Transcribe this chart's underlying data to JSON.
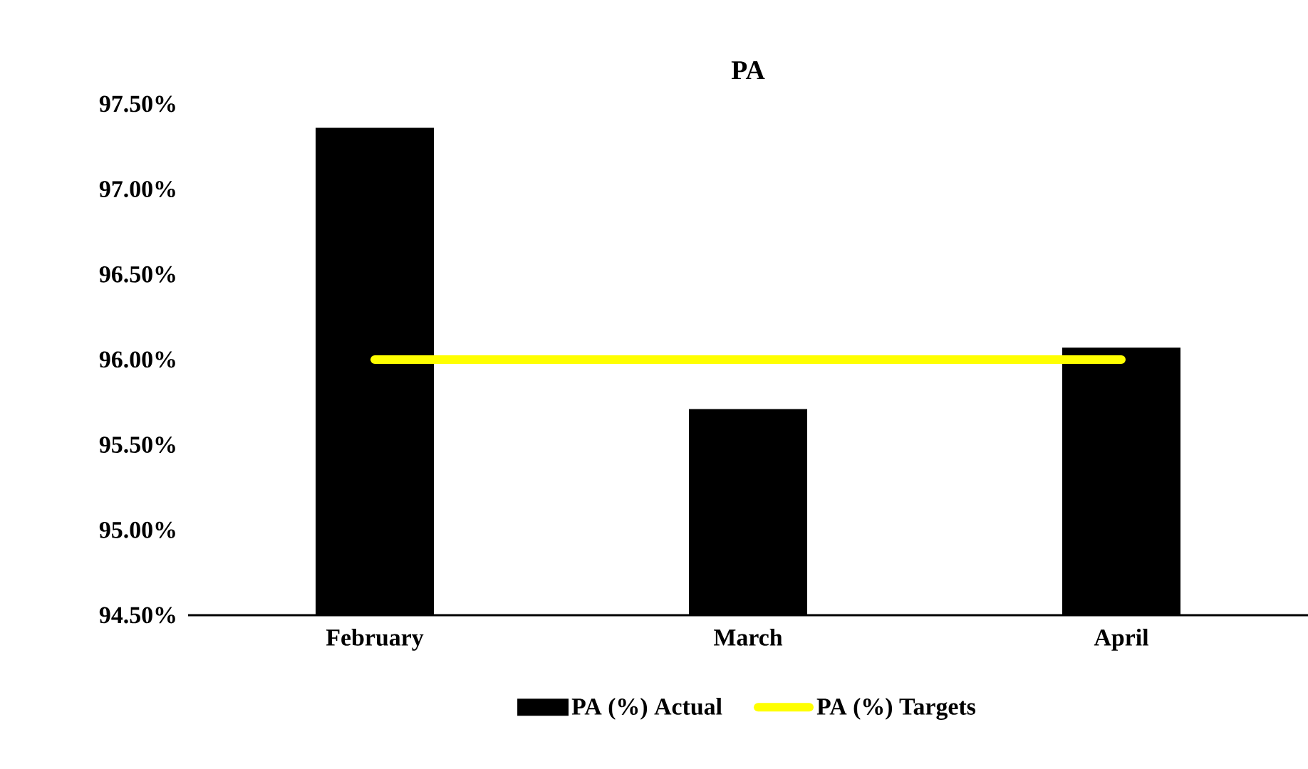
{
  "chart_data": {
    "type": "bar",
    "title": "PA",
    "categories": [
      "February",
      "March",
      "April"
    ],
    "series": [
      {
        "name": "PA (%) Actual",
        "color": "#000000",
        "values": [
          97.36,
          95.71,
          96.07
        ]
      },
      {
        "name": "PA (%) Targets",
        "type": "line",
        "color": "#ffff00",
        "values": [
          96.0,
          96.0,
          96.0
        ]
      }
    ],
    "ylim": [
      94.5,
      97.5
    ],
    "yticks": [
      {
        "value": 94.5,
        "label": "94.50%"
      },
      {
        "value": 95.0,
        "label": "95.00%"
      },
      {
        "value": 95.5,
        "label": "95.50%"
      },
      {
        "value": 96.0,
        "label": "96.00%"
      },
      {
        "value": 96.5,
        "label": "96.50%"
      },
      {
        "value": 97.0,
        "label": "97.00%"
      },
      {
        "value": 97.5,
        "label": "97.50%"
      }
    ],
    "legend": "bottom"
  }
}
